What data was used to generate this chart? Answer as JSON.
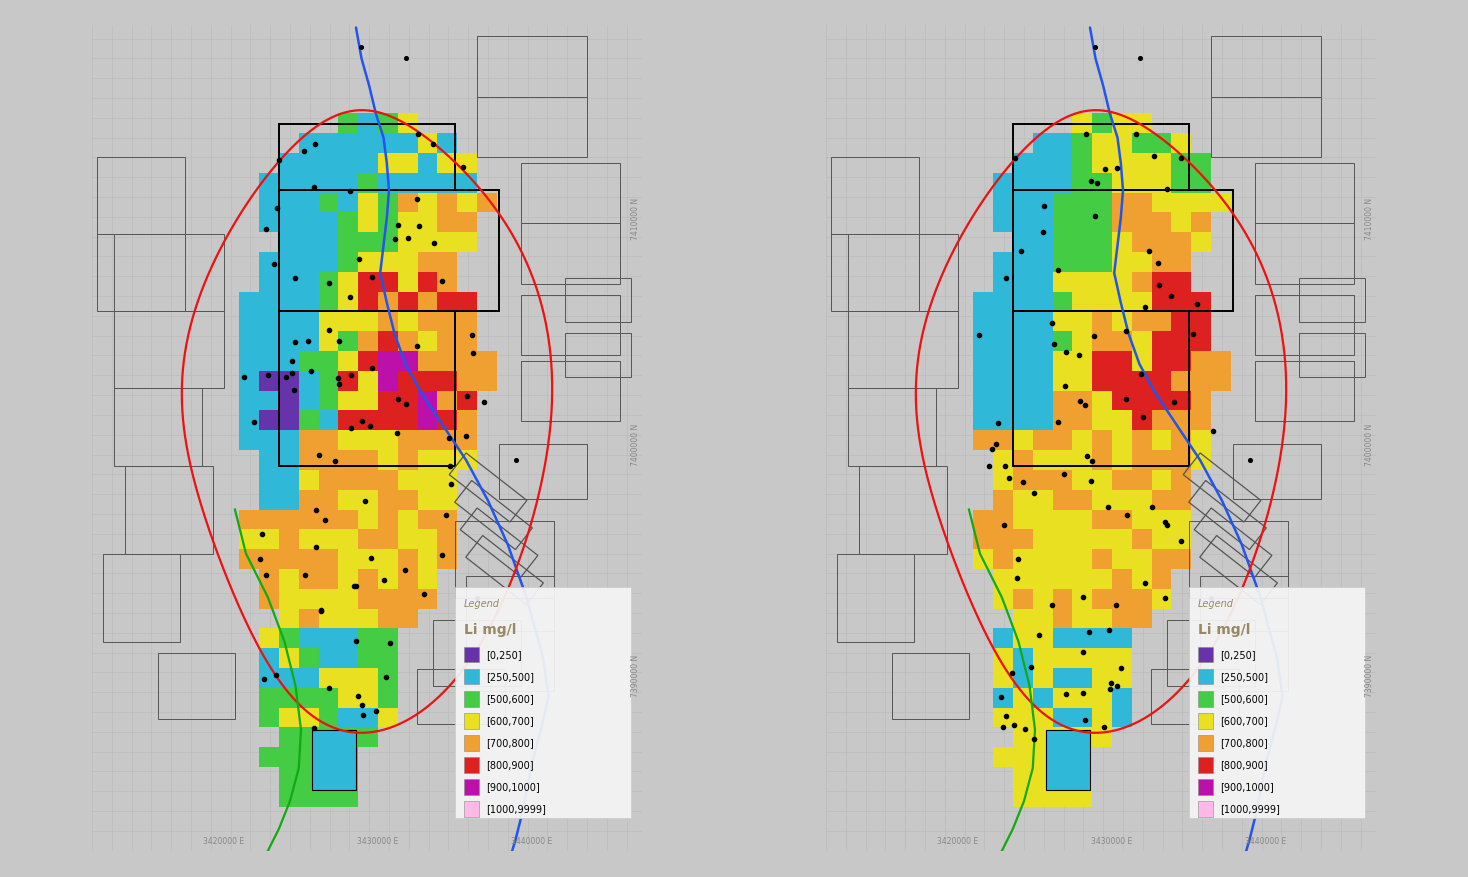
{
  "background_color": "#c8c8c8",
  "grid_color": "#b8b8b8",
  "legend_categories": [
    {
      "label": "[0,250]",
      "color": "#6633aa"
    },
    {
      "label": "[250,500]",
      "color": "#30b8d8"
    },
    {
      "label": "[500,600]",
      "color": "#44cc44"
    },
    {
      "label": "[600,700]",
      "color": "#e8e020"
    },
    {
      "label": "[700,800]",
      "color": "#f0a030"
    },
    {
      "label": "[800,900]",
      "color": "#dd2020"
    },
    {
      "label": "[900,1000]",
      "color": "#bb10aa"
    },
    {
      "label": "[1000,9999]",
      "color": "#ffb8e8"
    }
  ],
  "blue_line_color": "#2255ee",
  "red_line_color": "#ee1111",
  "green_line_color": "#11aa11",
  "coord_text_color": "#888888",
  "legend_title_color": "#998866",
  "legend_bg": "#f5f5f5",
  "map_border_color": "#333333",
  "outer_border_color": "#555555"
}
